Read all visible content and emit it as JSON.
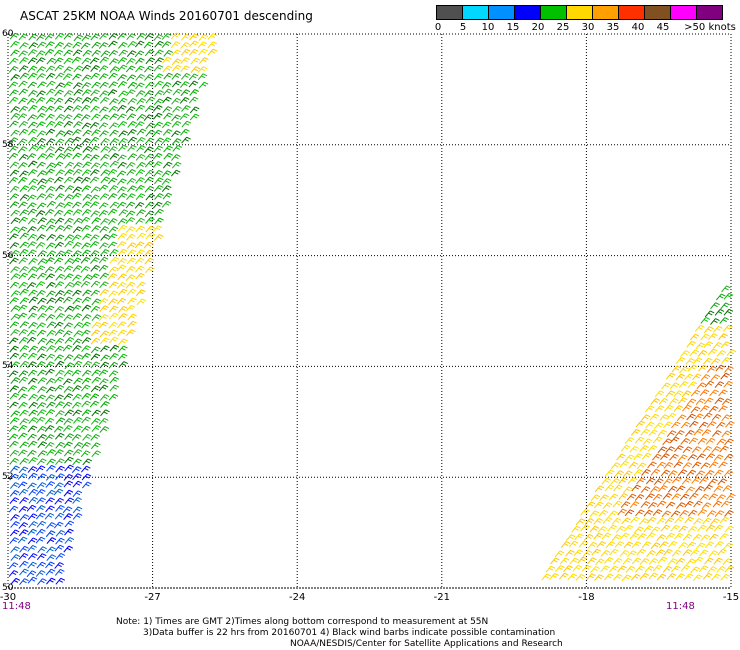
{
  "title": "ASCAT 25KM NOAA Winds 20160701 descending",
  "legend": {
    "labels": [
      "0",
      "5",
      "10",
      "15",
      "20",
      "25",
      "30",
      "35",
      "40",
      "45",
      ">50 knots"
    ],
    "colors": [
      "#505050",
      "#00d8ff",
      "#0090ff",
      "#0000ff",
      "#00c000",
      "#ffd800",
      "#ffa000",
      "#ff3000",
      "#805020",
      "#ff00ff",
      "#800080"
    ]
  },
  "map": {
    "x_axis_ticks": [
      "-30",
      "-27",
      "-24",
      "-21",
      "-18",
      "-15"
    ],
    "y_axis_ticks": [
      "60",
      "58",
      "56",
      "54",
      "52",
      "50"
    ],
    "lon_range": [
      -30,
      -15
    ],
    "lat_range": [
      50,
      60
    ],
    "grid": "dotted",
    "swath_times": [
      "11:48",
      "11:48"
    ],
    "swaths": [
      {
        "side": "west",
        "colors": [
          "green",
          "yellow",
          "blue"
        ]
      },
      {
        "side": "east",
        "colors": [
          "orange",
          "yellow",
          "green"
        ]
      }
    ]
  },
  "footer": {
    "line1": "Note: 1) Times are GMT 2)Times along bottom correspond to measurement at 55N",
    "line2": "3)Data buffer is 22 hrs from 20160701 4) Black wind barbs indicate possible contamination",
    "line3": "NOAA/NESDIS/Center for Satellite Applications and Research"
  }
}
